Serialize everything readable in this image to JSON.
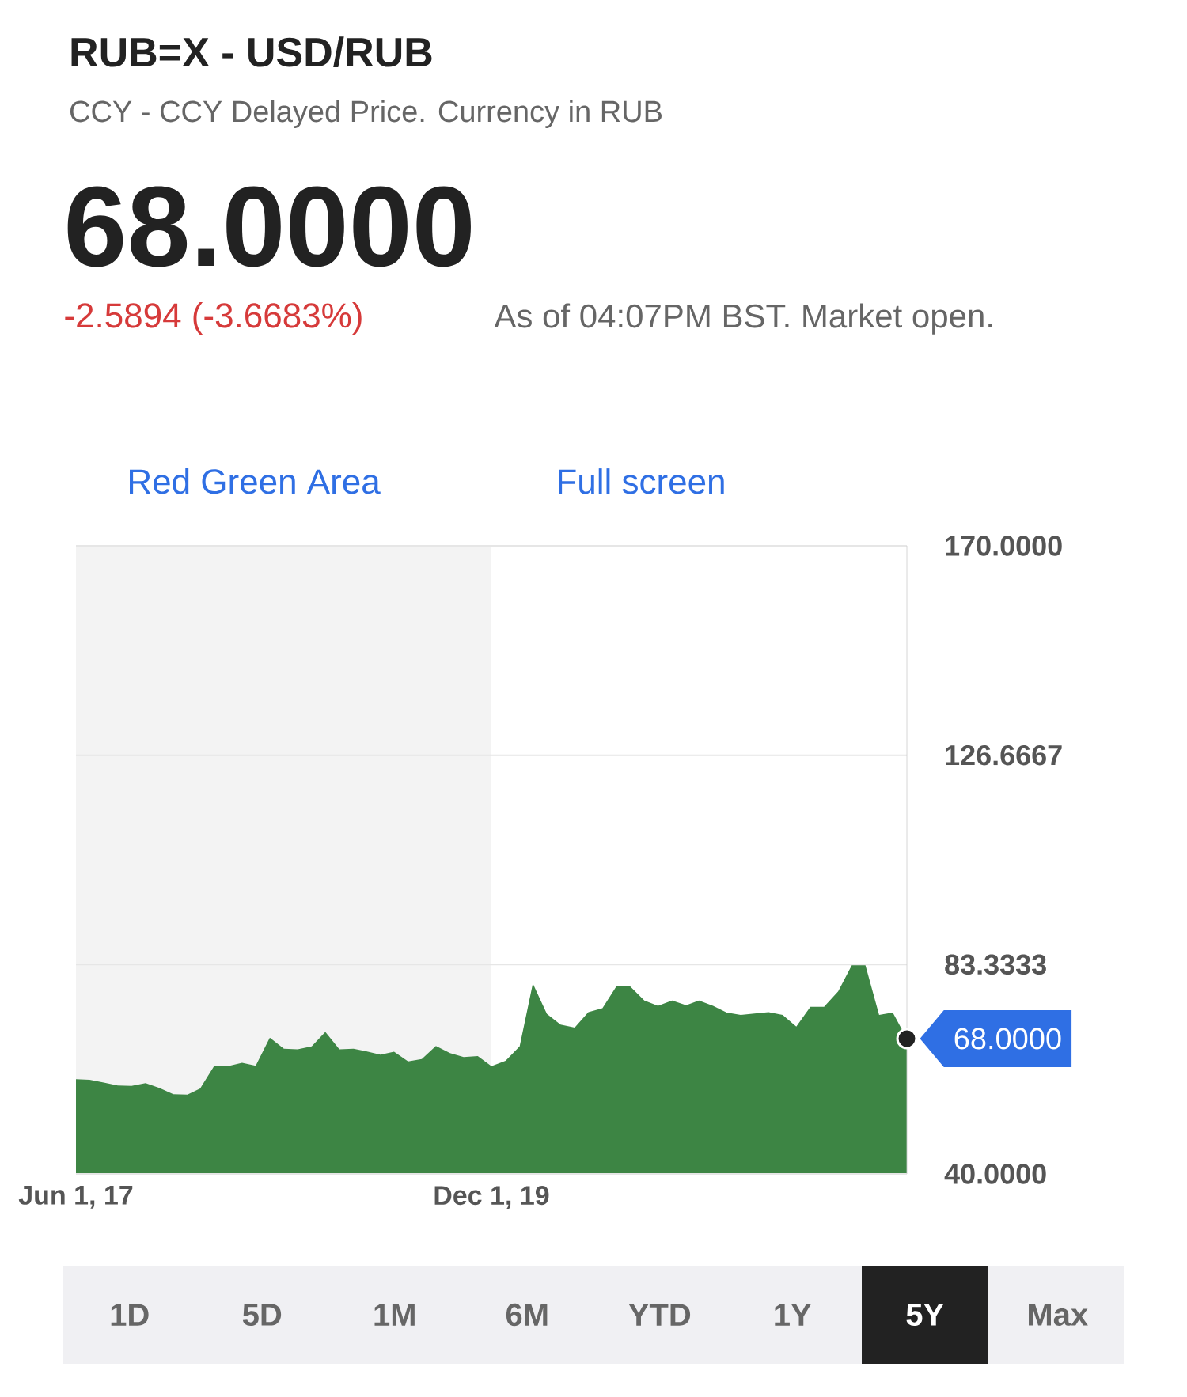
{
  "chart_data": {
    "type": "area",
    "title": "RUB=X - USD/RUB",
    "subtitle": "CCY - CCY Delayed Price. Currency in RUB",
    "x": [
      "2017-06",
      "2017-07",
      "2017-08",
      "2017-09",
      "2017-10",
      "2017-11",
      "2017-12",
      "2018-01",
      "2018-02",
      "2018-03",
      "2018-04",
      "2018-05",
      "2018-06",
      "2018-07",
      "2018-08",
      "2018-09",
      "2018-10",
      "2018-11",
      "2018-12",
      "2019-01",
      "2019-02",
      "2019-03",
      "2019-04",
      "2019-05",
      "2019-06",
      "2019-07",
      "2019-08",
      "2019-09",
      "2019-10",
      "2019-11",
      "2019-12",
      "2020-01",
      "2020-02",
      "2020-03",
      "2020-04",
      "2020-05",
      "2020-06",
      "2020-07",
      "2020-08",
      "2020-09",
      "2020-10",
      "2020-11",
      "2020-12",
      "2021-01",
      "2021-02",
      "2021-03",
      "2021-04",
      "2021-05",
      "2021-06",
      "2021-07",
      "2021-08",
      "2021-09",
      "2021-10",
      "2021-11",
      "2021-12",
      "2022-01",
      "2022-02",
      "2022-03",
      "2022-04",
      "2022-05",
      "2022-06"
    ],
    "series": [
      {
        "color": "#3d8544",
        "values": [
          59.6,
          59.5,
          58.9,
          58.3,
          58.2,
          58.8,
          57.8,
          56.5,
          56.4,
          57.7,
          62.4,
          62.3,
          63.0,
          62.4,
          68.2,
          65.9,
          65.8,
          66.4,
          69.4,
          65.8,
          65.9,
          65.4,
          64.7,
          65.3,
          63.3,
          63.8,
          66.5,
          65.0,
          64.2,
          64.4,
          62.3,
          63.4,
          66.4,
          79.4,
          73.1,
          70.9,
          70.3,
          73.5,
          74.3,
          78.9,
          78.8,
          75.9,
          74.8,
          75.9,
          74.9,
          75.9,
          74.8,
          73.4,
          72.9,
          73.2,
          73.5,
          72.9,
          70.5,
          74.6,
          74.6,
          77.8,
          83.4,
          83.5,
          72.9,
          73.4,
          68
        ]
      },
      {
        "type": "scatter",
        "color": "#222222",
        "x": [
          "2022-06"
        ],
        "values": [
          68
        ]
      }
    ],
    "xlim": [
      "2017-06-01",
      "2022-06-01"
    ],
    "xticks": [
      {
        "value": "2017-06-01",
        "label": "Jun 1, 17"
      },
      {
        "value": "2019-12-01",
        "label": "Dec 1, 19"
      }
    ],
    "ylim": [
      40,
      170
    ],
    "yticks": [
      {
        "value": 40,
        "label": "40.0000"
      },
      {
        "value": 83.3333,
        "label": "83.3333"
      },
      {
        "value": 126.6667,
        "label": "126.6667"
      },
      {
        "value": 170,
        "label": "170.0000"
      }
    ],
    "grid": "y",
    "bands": [
      {
        "axis": "x",
        "from": "2017-06-01",
        "to": "2019-12-01",
        "color": "#f3f3f3"
      }
    ],
    "annotations": [
      "68.0000",
      "-2.5894 (-3.6683%)",
      "As of 04:07PM BST. Market open.",
      "Red Green Area",
      "Full screen",
      "1D",
      "5D",
      "1M",
      "6M",
      "YTD",
      "1Y",
      "5Y",
      "Max",
      {
        "text": "68.0000",
        "x": "2022-06",
        "y": 68
      }
    ]
  }
}
